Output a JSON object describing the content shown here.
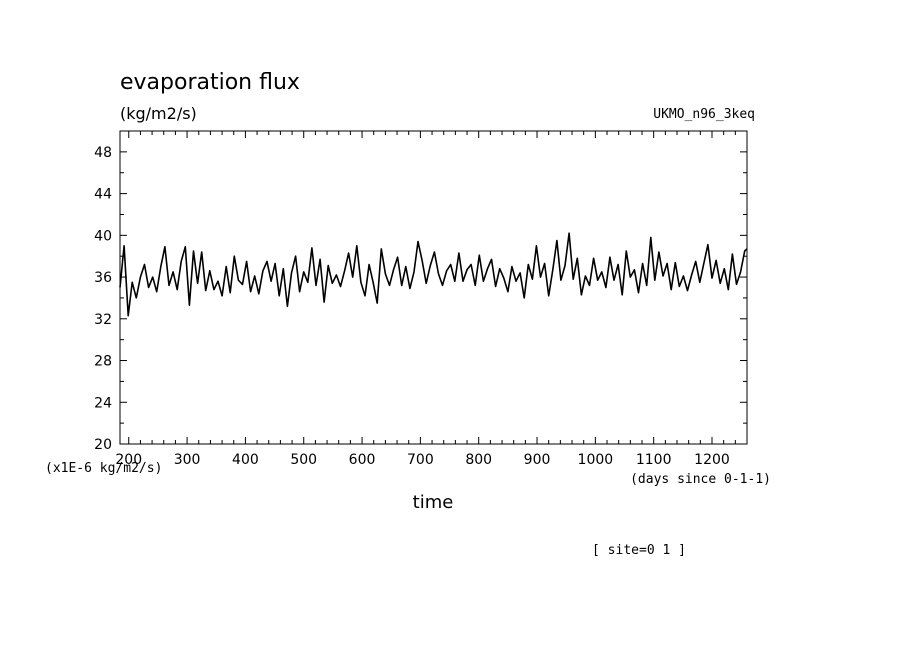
{
  "chart_data": {
    "type": "line",
    "title": "evaporation flux",
    "units": "(kg/m2/s)",
    "dataset": "UKMO_n96_3keq",
    "scale_label": "(x1E-6 kg/m2/s)",
    "xlabel": "time",
    "x_units": "(days since 0-1-1)",
    "footnote": "[ site=0 1 ]",
    "xlim": [
      185,
      1260
    ],
    "ylim": [
      20,
      50
    ],
    "x_ticks": [
      200,
      300,
      400,
      500,
      600,
      700,
      800,
      900,
      1000,
      1100,
      1200
    ],
    "x_tick_labels": [
      "200",
      "300",
      "400",
      "500",
      "600",
      "700",
      "800",
      "900",
      "1000",
      "1100",
      "1200"
    ],
    "y_ticks": [
      20,
      24,
      28,
      32,
      36,
      40,
      44,
      48
    ],
    "y_tick_labels": [
      "20",
      "24",
      "28",
      "32",
      "36",
      "40",
      "44",
      "48"
    ],
    "grid": false,
    "series": [
      {
        "color": "#000000",
        "x": [
          185,
          192,
          199,
          206,
          213,
          220,
          227,
          234,
          241,
          248,
          255,
          262,
          269,
          276,
          283,
          290,
          297,
          304,
          311,
          318,
          325,
          332,
          339,
          346,
          353,
          360,
          367,
          374,
          381,
          388,
          395,
          402,
          409,
          416,
          423,
          430,
          437,
          444,
          451,
          458,
          465,
          472,
          479,
          486,
          493,
          500,
          507,
          514,
          521,
          528,
          535,
          542,
          549,
          556,
          563,
          570,
          577,
          584,
          591,
          598,
          605,
          612,
          619,
          626,
          633,
          640,
          647,
          654,
          661,
          668,
          675,
          682,
          689,
          696,
          703,
          710,
          717,
          724,
          731,
          738,
          745,
          752,
          759,
          766,
          773,
          780,
          787,
          794,
          801,
          808,
          815,
          822,
          829,
          836,
          843,
          850,
          857,
          864,
          871,
          878,
          885,
          892,
          899,
          906,
          913,
          920,
          927,
          934,
          941,
          948,
          955,
          962,
          969,
          976,
          983,
          990,
          997,
          1004,
          1011,
          1018,
          1025,
          1032,
          1039,
          1046,
          1053,
          1060,
          1067,
          1074,
          1081,
          1088,
          1095,
          1102,
          1109,
          1116,
          1123,
          1130,
          1137,
          1144,
          1151,
          1158,
          1165,
          1172,
          1179,
          1186,
          1193,
          1200,
          1207,
          1214,
          1221,
          1228,
          1235,
          1242,
          1249,
          1256,
          1260
        ],
        "y": [
          35.0,
          39.0,
          32.3,
          35.5,
          34.0,
          36.0,
          37.2,
          35.0,
          36.0,
          34.6,
          37.0,
          38.9,
          35.2,
          36.5,
          34.8,
          37.5,
          38.9,
          33.3,
          38.5,
          35.4,
          38.4,
          34.7,
          36.6,
          34.8,
          35.6,
          34.2,
          37.0,
          34.5,
          38.0,
          35.7,
          35.3,
          37.5,
          34.6,
          36.1,
          34.4,
          36.6,
          37.5,
          35.6,
          37.3,
          34.2,
          36.8,
          33.2,
          36.4,
          38.0,
          34.6,
          36.5,
          35.5,
          38.8,
          35.2,
          37.7,
          33.6,
          37.1,
          35.4,
          36.2,
          35.1,
          36.6,
          38.3,
          36.0,
          39.0,
          35.5,
          34.2,
          37.2,
          35.5,
          33.5,
          38.7,
          36.3,
          35.2,
          36.7,
          37.9,
          35.2,
          37.0,
          34.9,
          36.5,
          39.4,
          37.6,
          35.4,
          37.1,
          38.4,
          36.3,
          35.2,
          36.6,
          37.2,
          35.6,
          38.3,
          35.6,
          36.7,
          37.2,
          35.2,
          38.1,
          35.6,
          36.8,
          37.7,
          35.1,
          36.8,
          35.9,
          34.6,
          37.0,
          35.6,
          36.4,
          34.0,
          37.2,
          35.8,
          39.0,
          36.0,
          37.3,
          34.2,
          36.7,
          39.5,
          35.7,
          37.1,
          40.2,
          35.8,
          37.8,
          34.3,
          36.1,
          35.2,
          37.8,
          35.7,
          36.5,
          35.0,
          37.9,
          35.7,
          37.2,
          34.3,
          38.5,
          36.0,
          36.7,
          34.5,
          37.3,
          35.2,
          39.8,
          35.7,
          38.4,
          36.1,
          37.3,
          34.8,
          37.4,
          35.1,
          36.1,
          34.7,
          36.2,
          37.5,
          35.5,
          37.3,
          39.1,
          35.9,
          37.6,
          35.4,
          36.8,
          34.8,
          38.2,
          35.3,
          36.5,
          38.5,
          38.7
        ]
      }
    ]
  }
}
